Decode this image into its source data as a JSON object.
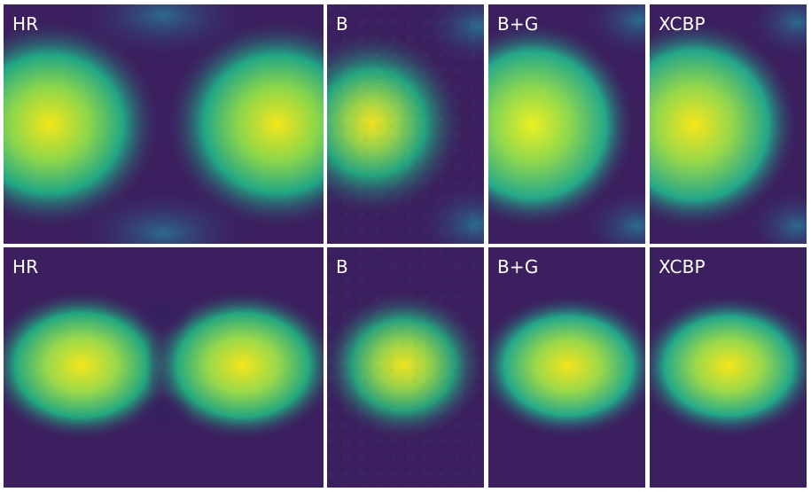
{
  "panels": [
    {
      "label": "HR"
    },
    {
      "label": "B"
    },
    {
      "label": "B+G"
    },
    {
      "label": "XCBP"
    },
    {
      "label": "HR"
    },
    {
      "label": "B"
    },
    {
      "label": "B+G"
    },
    {
      "label": "XCBP"
    }
  ],
  "colors": {
    "dark": "#3b1f5e",
    "mid": "#2a7b8e",
    "green": "#30b07b",
    "yellow": "#f1e51d"
  }
}
